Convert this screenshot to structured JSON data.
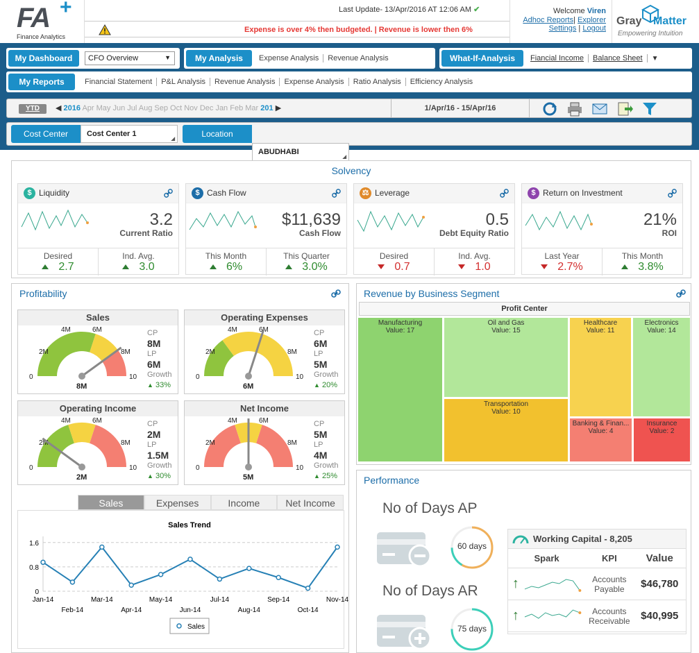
{
  "header": {
    "logo": "FA",
    "logo_plus": "+",
    "logo_sub": "Finance Analytics",
    "last_update": "Last Update- 13/Apr/2016 AT 12:06 AM",
    "alert": "Expense is over 4% then budgeted.    |    Revenue is lower then 6%",
    "welcome_prefix": "Welcome",
    "user": "Viren",
    "links": [
      "Adhoc Reports",
      "Explorer",
      "Settings",
      "Logout"
    ],
    "brand_gray": "Gray",
    "brand_matter": "Matter",
    "brand_tag": "Empowering Intuition"
  },
  "nav": {
    "dashboard": "My Dashboard",
    "dashboard_select": "CFO Overview",
    "analysis": "My Analysis",
    "analysis_links": [
      "Expense Analysis",
      "Revenue Analysis"
    ],
    "whatif": "What-If-Analysis",
    "whatif_links": [
      "Fiancial Income",
      "Balance Sheet"
    ],
    "reports": "My Reports",
    "report_links": [
      "Financial Statement",
      "P&L Analysis",
      "Revenue Analysis",
      "Expense Analysis",
      "Ratio Analysis",
      "Efficiency Analysis"
    ]
  },
  "period": {
    "ytd": "YTD",
    "year": "2016",
    "months": "Apr  May  Jun  Jul  Aug  Sep  Oct  Nov  Dec  Jan  Feb  Mar",
    "year_end": "201",
    "range": "1/Apr/16 - 15/Apr/16"
  },
  "filters": {
    "cost_center_label": "Cost Center",
    "cost_center_value": "Cost Center 1",
    "location_label": "Location",
    "location_value": "ABUDHABI"
  },
  "solvency": {
    "title": "Solvency",
    "cards": [
      {
        "title": "Liquidity",
        "value": "3.2",
        "sub": "Current Ratio",
        "f1l": "Desired",
        "f1v": "2.7",
        "f2l": "Ind. Avg.",
        "f2v": "3.0"
      },
      {
        "title": "Cash Flow",
        "value": "$11,639",
        "sub": "Cash Flow",
        "f1l": "This Month",
        "f1v": "6%",
        "f2l": "This Quarter",
        "f2v": "3.0%"
      },
      {
        "title": "Leverage",
        "value": "0.5",
        "sub": "Debt Equity Ratio",
        "f1l": "Desired",
        "f1v": "0.7",
        "f2l": "Ind. Avg.",
        "f2v": "1.0"
      },
      {
        "title": "Return on Investment",
        "value": "21%",
        "sub": "ROI",
        "f1l": "Last Year",
        "f1v": "2.7%",
        "f2l": "This Month",
        "f2v": "3.8%"
      }
    ]
  },
  "profitability": {
    "title": "Profitability",
    "gauges": [
      {
        "title": "Sales",
        "cp": "8M",
        "lp": "6M",
        "growth": "33%",
        "needle": "8M"
      },
      {
        "title": "Operating Expenses",
        "cp": "6M",
        "lp": "5M",
        "growth": "20%",
        "needle": "6M"
      },
      {
        "title": "Operating Income",
        "cp": "2M",
        "lp": "1.5M",
        "growth": "30%",
        "needle": "2M"
      },
      {
        "title": "Net Income",
        "cp": "5M",
        "lp": "4M",
        "growth": "25%",
        "needle": "5M"
      }
    ],
    "labels": {
      "cp": "CP",
      "lp": "LP",
      "growth": "Growth"
    },
    "ticks": [
      "0",
      "2M",
      "4M",
      "6M",
      "8M",
      "10"
    ],
    "tabs": [
      "Sales",
      "Expenses",
      "Income",
      "Net Income"
    ]
  },
  "trend": {
    "title": "Sales Trend",
    "legend": "Sales",
    "yticks": [
      "1.6",
      "0.8",
      "0"
    ],
    "xlabels": [
      "Jan-14",
      "Feb-14",
      "Mar-14",
      "Apr-14",
      "May-14",
      "Jun-14",
      "Jul-14",
      "Aug-14",
      "Sep-14",
      "Oct-14",
      "Nov-14"
    ]
  },
  "chart_data": {
    "type": "line",
    "title": "Sales Trend",
    "x": [
      "Jan-14",
      "Feb-14",
      "Mar-14",
      "Apr-14",
      "May-14",
      "Jun-14",
      "Jul-14",
      "Aug-14",
      "Sep-14",
      "Oct-14",
      "Nov-14"
    ],
    "series": [
      {
        "name": "Sales",
        "values": [
          0.95,
          0.3,
          1.45,
          0.2,
          0.55,
          1.05,
          0.4,
          0.75,
          0.45,
          0.1,
          1.45
        ]
      }
    ],
    "ylim": [
      0,
      1.8
    ]
  },
  "revenue": {
    "title": "Revenue by Business Segment",
    "header": "Profit Center",
    "segments": [
      {
        "name": "Manufacturing",
        "value": "Value: 17"
      },
      {
        "name": "Oil and Gas",
        "value": "Value: 15"
      },
      {
        "name": "Healthcare",
        "value": "Value: 11"
      },
      {
        "name": "Electronics",
        "value": "Value: 14"
      },
      {
        "name": "Transportation",
        "value": "Value: 10"
      },
      {
        "name": "Banking & Finan...",
        "value": "Value: 4"
      },
      {
        "name": "Insurance",
        "value": "Value: 2"
      }
    ]
  },
  "performance": {
    "title": "Performance",
    "ap_label": "No of Days AP",
    "ap_value": "60 days",
    "ar_label": "No of Days AR",
    "ar_value": "75 days",
    "wc_title": "Working Capital - 8,205",
    "cols": [
      "Spark",
      "KPI",
      "Value"
    ],
    "rows": [
      {
        "kpi": "Accounts Payable",
        "value": "$46,780"
      },
      {
        "kpi": "Accounts Receivable",
        "value": "$40,995"
      }
    ]
  },
  "colors": {
    "accent": "#1c8fc8",
    "navy": "#1c5d8a",
    "green": "#8ed36f",
    "light_green": "#b2e79a",
    "yellow": "#f7d24f",
    "orange": "#f2c12e",
    "red": "#f07070",
    "gauge_green": "#8fc43e",
    "gauge_yellow": "#f5d342",
    "gauge_red": "#f47f72"
  }
}
